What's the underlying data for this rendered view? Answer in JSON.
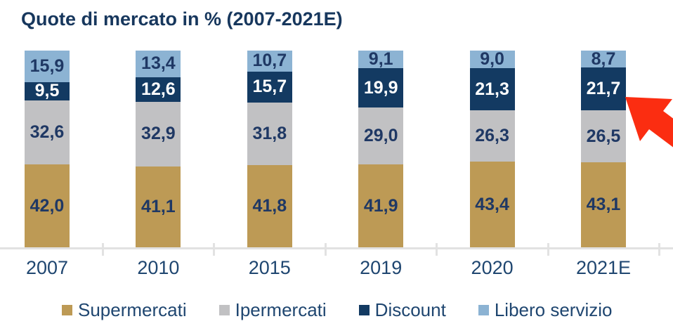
{
  "title": "Quote di mercato in % (2007-2021E)",
  "colors": {
    "title_text": "#17375D",
    "value_label": "#1F3864",
    "value_label_on_dark": "#FFFFFF",
    "axis_line": "#E2E2E2",
    "arrow": "#FB2D11"
  },
  "chart_data": {
    "type": "bar",
    "stacked": true,
    "unit": "%",
    "title": "Quote di mercato in % (2007-2021E)",
    "categories": [
      "2007",
      "2010",
      "2015",
      "2019",
      "2020",
      "2021E"
    ],
    "series": [
      {
        "name": "Supermercati",
        "color": "#BD9A55",
        "values": [
          42.0,
          41.1,
          41.8,
          41.9,
          43.4,
          43.1
        ],
        "labels": [
          "42,0",
          "41,1",
          "41,8",
          "41,9",
          "43,4",
          "43,1"
        ]
      },
      {
        "name": "Ipermercati",
        "color": "#C1C1C3",
        "values": [
          32.6,
          32.9,
          31.8,
          29.0,
          26.3,
          26.5
        ],
        "labels": [
          "32,6",
          "32,9",
          "31,8",
          "29,0",
          "26,3",
          "26,5"
        ]
      },
      {
        "name": "Discount",
        "color": "#133A62",
        "values": [
          9.5,
          12.6,
          15.7,
          19.9,
          21.3,
          21.7
        ],
        "labels": [
          "9,5",
          "12,6",
          "15,7",
          "19,9",
          "21,3",
          "21,7"
        ],
        "label_color": "#FFFFFF"
      },
      {
        "name": "Libero servizio",
        "color": "#8CB3D3",
        "values": [
          15.9,
          13.4,
          10.7,
          9.1,
          9.0,
          8.7
        ],
        "labels": [
          "15,9",
          "13,4",
          "10,7",
          "9,1",
          "9,0",
          "8,7"
        ]
      }
    ],
    "stack_order_top_to_bottom": [
      "Libero servizio",
      "Discount",
      "Ipermercati",
      "Supermercati"
    ],
    "ylim": [
      0,
      100
    ],
    "grid": false,
    "legend_position": "bottom",
    "annotation": {
      "type": "arrow",
      "points_to": "Discount segment of 2021E (21,7)"
    }
  }
}
